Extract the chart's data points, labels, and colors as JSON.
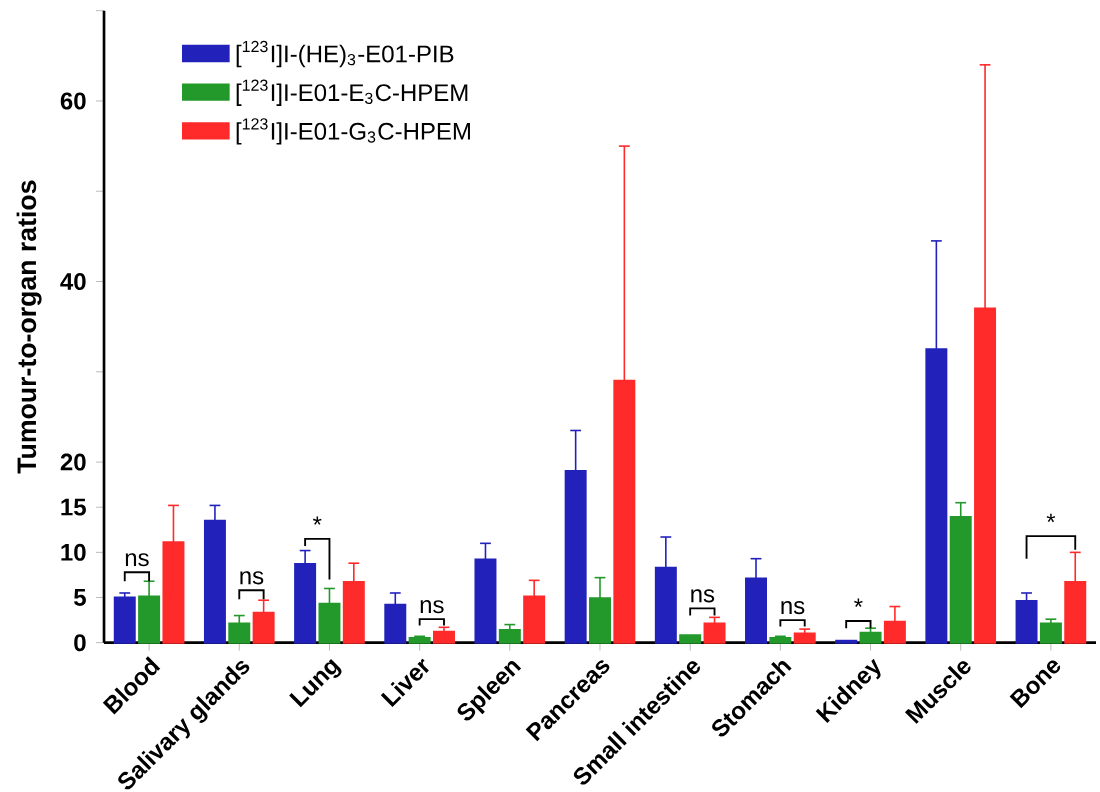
{
  "chart_data": {
    "type": "bar",
    "ylabel": "Tumour-to-organ ratios",
    "categories": [
      "Blood",
      "Salivary glands",
      "Lung",
      "Liver",
      "Spleen",
      "Pancreas",
      "Small intestine",
      "Stomach",
      "Kidney",
      "Muscle",
      "Bone"
    ],
    "series": [
      {
        "name": "[$^{123}$I]I-(HE)$_{3}$-E01-PIB",
        "color": "#2222bb",
        "values": [
          5.0,
          13.5,
          8.7,
          4.2,
          9.2,
          19,
          8.3,
          7.1,
          0.2,
          32.5,
          4.6
        ],
        "errors": [
          [
            5.0,
            5.5
          ],
          [
            13.5,
            15.2
          ],
          [
            8.7,
            10.2
          ],
          [
            4.2,
            5.5
          ],
          [
            9.2,
            11.0
          ],
          [
            19,
            23.5
          ],
          [
            8.3,
            11.7
          ],
          [
            7.1,
            9.3
          ],
          null,
          [
            32.5,
            44.5
          ],
          [
            4.6,
            5.5
          ]
        ]
      },
      {
        "name": "[$^{123}$I]I-E01-E$_{3}$C-HPEM",
        "color": "#22992a",
        "values": [
          5.1,
          2.1,
          4.3,
          0.5,
          1.4,
          4.9,
          0.8,
          0.5,
          1.1,
          13.9,
          2.1
        ],
        "errors": [
          [
            5.1,
            6.8
          ],
          [
            2.1,
            3.0
          ],
          [
            4.3,
            6.0
          ],
          [
            0.5,
            0.7
          ],
          [
            1.4,
            2.0
          ],
          [
            4.9,
            7.2
          ],
          null,
          [
            0.5,
            0.7
          ],
          [
            1.1,
            1.6
          ],
          [
            13.9,
            15.5
          ],
          [
            2.1,
            2.6
          ]
        ]
      },
      {
        "name": "[$^{123}$I]I-E01-G$_{3}$C-HPEM",
        "color": "#ff2a2a",
        "values": [
          11.1,
          3.3,
          6.7,
          1.2,
          5.1,
          29,
          2.1,
          1.0,
          2.3,
          37,
          6.7
        ],
        "errors": [
          [
            11.1,
            15.2
          ],
          [
            3.3,
            4.7
          ],
          [
            6.7,
            8.8
          ],
          [
            1.2,
            1.7
          ],
          [
            5.1,
            6.9
          ],
          [
            29,
            55
          ],
          [
            2.1,
            2.8
          ],
          [
            1.0,
            1.5
          ],
          [
            2.3,
            4.0
          ],
          [
            37,
            64
          ],
          [
            6.7,
            10.0
          ]
        ]
      }
    ],
    "ylim": [
      0,
      70
    ],
    "yticks": [
      0,
      5,
      10,
      15,
      20,
      {
        "value": 30,
        "label": null
      },
      40,
      {
        "value": 50,
        "label": null
      },
      60,
      {
        "value": 70,
        "label": null
      }
    ],
    "legend": "top left",
    "annotations": [
      "ns",
      "ns",
      "*",
      "ns",
      "ns",
      "ns",
      "*",
      "*"
    ]
  }
}
